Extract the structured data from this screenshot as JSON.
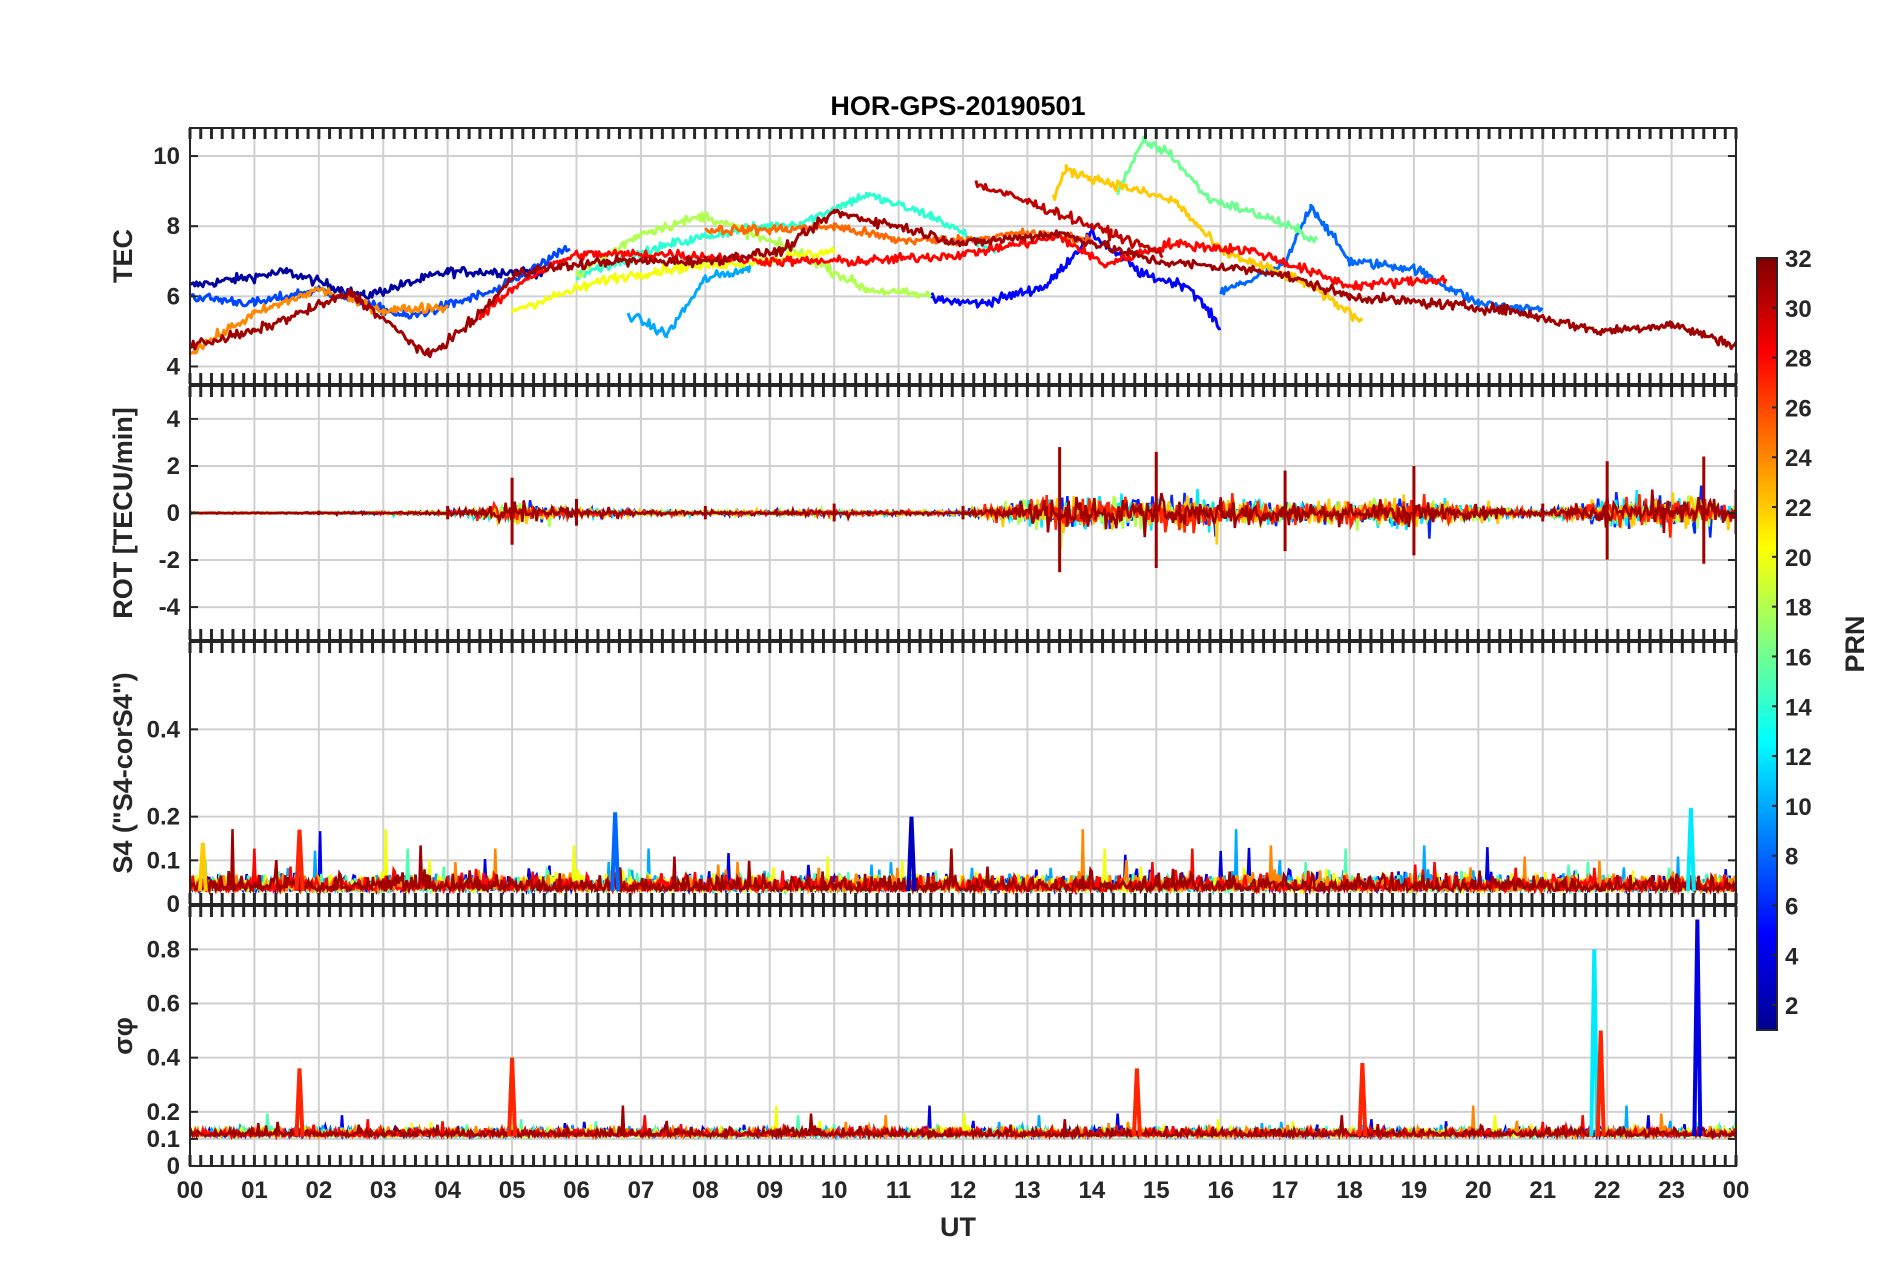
{
  "chart_data": {
    "type": "line",
    "title": "HOR-GPS-20190501",
    "xlabel": "UT",
    "x_range_hours": [
      0,
      24
    ],
    "x_tick_labels": [
      "00",
      "01",
      "02",
      "03",
      "04",
      "05",
      "06",
      "07",
      "08",
      "09",
      "10",
      "11",
      "12",
      "13",
      "14",
      "15",
      "16",
      "17",
      "18",
      "19",
      "20",
      "21",
      "22",
      "23",
      "00"
    ],
    "grid": true,
    "colormap": "jet",
    "colorbar": {
      "label": "PRN",
      "range": [
        1,
        32
      ],
      "tick_labels": [
        "2",
        "4",
        "6",
        "8",
        "10",
        "12",
        "14",
        "16",
        "18",
        "20",
        "22",
        "24",
        "26",
        "28",
        "30",
        "32"
      ],
      "colors": [
        "#00008f",
        "#0000ff",
        "#0080ff",
        "#00ffff",
        "#80ff80",
        "#ffff00",
        "#ff8000",
        "#ff0000",
        "#800000"
      ]
    },
    "panels": [
      {
        "id": "tec",
        "ylabel": "TEC",
        "ylim": [
          3.5,
          10.8
        ],
        "y_ticks": [
          4,
          6,
          8,
          10
        ],
        "y_tick_labels": [
          "4",
          "6",
          "8",
          "10"
        ],
        "series": [
          {
            "prn": 2,
            "x": [
              0,
              1.5,
              2.7,
              4,
              5.5
            ],
            "values": [
              6.3,
              6.7,
              6.0,
              6.7,
              6.7
            ]
          },
          {
            "prn": 5,
            "x": [
              11.5,
              12.3,
              13.3,
              14,
              14.8,
              15.5,
              16
            ],
            "values": [
              5.9,
              5.8,
              6.3,
              7.8,
              6.6,
              6.3,
              5.1
            ]
          },
          {
            "prn": 7,
            "x": [
              0,
              1,
              2,
              3.4,
              4.8,
              5.9
            ],
            "values": [
              6.0,
              5.8,
              6.2,
              5.4,
              6.2,
              7.4
            ]
          },
          {
            "prn": 8,
            "x": [
              16,
              17,
              17.4,
              18,
              19,
              20,
              21
            ],
            "values": [
              6.1,
              6.9,
              8.6,
              7.0,
              6.8,
              5.8,
              5.6
            ]
          },
          {
            "prn": 10,
            "x": [
              6.8,
              7.4,
              8,
              8.7
            ],
            "values": [
              5.5,
              4.9,
              6.5,
              6.8
            ]
          },
          {
            "prn": 14,
            "x": [
              6,
              7.5,
              8.5,
              9.5,
              10.5,
              11.5,
              12.5
            ],
            "values": [
              6.6,
              7.5,
              7.9,
              8.1,
              8.9,
              8.3,
              7.3
            ]
          },
          {
            "prn": 16,
            "x": [
              14.4,
              14.8,
              15.2,
              15.8,
              16.8,
              17.5
            ],
            "values": [
              9.0,
              10.4,
              10.1,
              8.8,
              8.2,
              7.6
            ]
          },
          {
            "prn": 18,
            "x": [
              6,
              7,
              8,
              9.5,
              10.5,
              11.5
            ],
            "values": [
              6.6,
              7.8,
              8.3,
              7.2,
              6.2,
              6.0
            ]
          },
          {
            "prn": 20,
            "x": [
              5,
              6.5,
              7.5,
              8.8,
              10
            ],
            "values": [
              5.6,
              6.5,
              6.8,
              7.0,
              7.3
            ]
          },
          {
            "prn": 22,
            "x": [
              13.4,
              13.6,
              15.3,
              16,
              17.3,
              18.2
            ],
            "values": [
              8.8,
              9.6,
              8.7,
              7.3,
              6.4,
              5.3
            ]
          },
          {
            "prn": 24,
            "x": [
              0,
              1,
              2,
              3,
              4
            ],
            "values": [
              4.4,
              5.5,
              6.2,
              5.6,
              5.7
            ]
          },
          {
            "prn": 25,
            "x": [
              8,
              9,
              10,
              11,
              12,
              13,
              14
            ],
            "values": [
              7.9,
              7.9,
              8.0,
              7.6,
              7.6,
              7.8,
              7.6
            ]
          },
          {
            "prn": 28,
            "x": [
              4.5,
              5.2,
              6,
              7.5,
              9,
              10.5,
              12,
              13.5,
              14.2,
              15.2,
              16.5,
              18,
              19.5
            ],
            "values": [
              5.4,
              6.5,
              7.2,
              7.2,
              7.0,
              7.0,
              7.2,
              7.7,
              6.9,
              7.5,
              7.3,
              6.3,
              6.5
            ]
          },
          {
            "prn": 30,
            "x": [
              12.2,
              13,
              14.3,
              15.1
            ],
            "values": [
              9.2,
              8.7,
              7.8,
              7.2
            ]
          },
          {
            "prn": 31,
            "x": [
              0,
              1,
              2.5,
              3.7,
              4.4,
              5.1,
              6.5,
              8,
              9.2,
              10,
              11,
              12,
              13.5,
              15,
              16.8,
              18,
              20.5,
              21.9,
              23,
              24
            ],
            "values": [
              4.6,
              5.0,
              6.1,
              4.3,
              5.3,
              6.7,
              7.0,
              7.0,
              7.3,
              8.4,
              8.0,
              7.5,
              7.8,
              7.0,
              6.7,
              6.0,
              5.6,
              5.0,
              5.2,
              4.6
            ]
          }
        ]
      },
      {
        "id": "rot",
        "ylabel": "ROT [TECU/min]",
        "ylim": [
          -5.4,
          5.4
        ],
        "y_ticks": [
          -4,
          -2,
          0,
          2,
          4
        ],
        "y_tick_labels": [
          "-4",
          "-2",
          "0",
          "2",
          "4"
        ],
        "series": [
          {
            "prn": 31,
            "x": [
              0,
              2,
              4,
              5,
              6,
              8,
              10,
              12,
              13.5,
              15,
              17,
              19,
              21,
              22,
              23.5,
              24
            ],
            "values": [
              0.1,
              0.1,
              0.3,
              1.5,
              0.6,
              0.3,
              0.4,
              0.3,
              2.8,
              2.6,
              1.8,
              2.0,
              0.4,
              2.2,
              2.4,
              1.0
            ]
          }
        ]
      },
      {
        "id": "s4",
        "ylabel": "S4 (\"S4-corS4\")",
        "ylim": [
          0,
          0.6
        ],
        "y_ticks": [
          0,
          0.1,
          0.2,
          0.4
        ],
        "y_tick_labels": [
          "0",
          "0.1",
          "0.2",
          "0.4"
        ],
        "series": [
          {
            "prn": 3,
            "x": [
              11.2
            ],
            "values": [
              0.2
            ]
          },
          {
            "prn": 8,
            "x": [
              6.6
            ],
            "values": [
              0.21
            ]
          },
          {
            "prn": 12,
            "x": [
              23.3
            ],
            "values": [
              0.22
            ]
          },
          {
            "prn": 22,
            "x": [
              0.2
            ],
            "values": [
              0.14
            ]
          },
          {
            "prn": 27,
            "x": [
              1.7
            ],
            "values": [
              0.17
            ]
          }
        ]
      },
      {
        "id": "sigma_phi",
        "ylabel": "σφ",
        "ylim": [
          0,
          0.96
        ],
        "y_ticks": [
          0,
          0.1,
          0.2,
          0.4,
          0.6,
          0.8
        ],
        "y_tick_labels": [
          "0",
          "0.1",
          "0.2",
          "0.4",
          "0.6",
          "0.8"
        ],
        "series": [
          {
            "prn": 4,
            "x": [
              23.4
            ],
            "values": [
              0.91
            ]
          },
          {
            "prn": 12,
            "x": [
              21.8
            ],
            "values": [
              0.8
            ]
          },
          {
            "prn": 27,
            "x": [
              1.7,
              5,
              14.7,
              18.2,
              21.9
            ],
            "values": [
              0.36,
              0.4,
              0.36,
              0.38,
              0.5
            ]
          }
        ]
      }
    ]
  }
}
